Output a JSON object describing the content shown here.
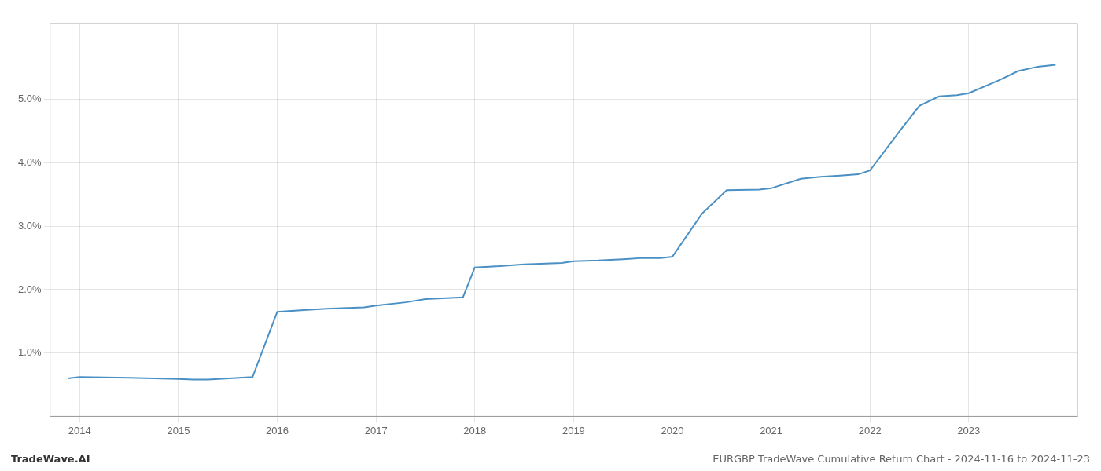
{
  "chart_data": {
    "type": "line",
    "title": "EURGBP TradeWave Cumulative Return Chart - 2024-11-16 to 2024-11-23",
    "annotations": [
      "TradeWave.AI"
    ],
    "x": [
      2013.88,
      2014.0,
      2014.5,
      2015.0,
      2015.15,
      2015.3,
      2015.75,
      2016.0,
      2016.3,
      2016.5,
      2016.88,
      2017.0,
      2017.3,
      2017.5,
      2017.88,
      2018.0,
      2018.25,
      2018.5,
      2018.88,
      2019.0,
      2019.25,
      2019.5,
      2019.7,
      2019.88,
      2020.0,
      2020.3,
      2020.55,
      2020.88,
      2021.0,
      2021.3,
      2021.5,
      2021.7,
      2021.88,
      2022.0,
      2022.3,
      2022.5,
      2022.7,
      2022.88,
      2023.0,
      2023.3,
      2023.5,
      2023.7,
      2023.88
    ],
    "values": [
      0.6,
      0.62,
      0.61,
      0.59,
      0.58,
      0.58,
      0.62,
      1.65,
      1.68,
      1.7,
      1.72,
      1.75,
      1.8,
      1.85,
      1.88,
      2.35,
      2.37,
      2.4,
      2.42,
      2.45,
      2.46,
      2.48,
      2.5,
      2.5,
      2.52,
      3.2,
      3.57,
      3.58,
      3.6,
      3.75,
      3.78,
      3.8,
      3.82,
      3.88,
      4.5,
      4.9,
      5.05,
      5.07,
      5.1,
      5.3,
      5.45,
      5.52,
      5.55
    ],
    "color": "#4a90c4",
    "xlim": [
      2013.7,
      2024.1
    ],
    "ylim": [
      0.0,
      6.2
    ],
    "xticks": [
      2014,
      2015,
      2016,
      2017,
      2018,
      2019,
      2020,
      2021,
      2022,
      2023
    ],
    "yticks": [
      {
        "value": 1.0,
        "label": "1.0%"
      },
      {
        "value": 2.0,
        "label": "2.0%"
      },
      {
        "value": 3.0,
        "label": "3.0%"
      },
      {
        "value": 4.0,
        "label": "4.0%"
      },
      {
        "value": 5.0,
        "label": "5.0%"
      }
    ],
    "grid": true
  }
}
